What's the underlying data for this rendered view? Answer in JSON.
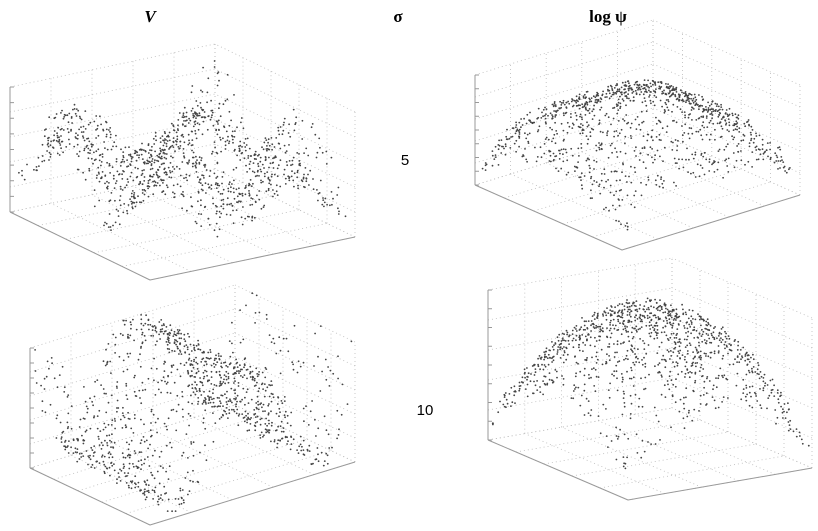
{
  "headers": [
    "V",
    "σ",
    "log ψ"
  ],
  "rows": [
    "5",
    "10"
  ]
}
